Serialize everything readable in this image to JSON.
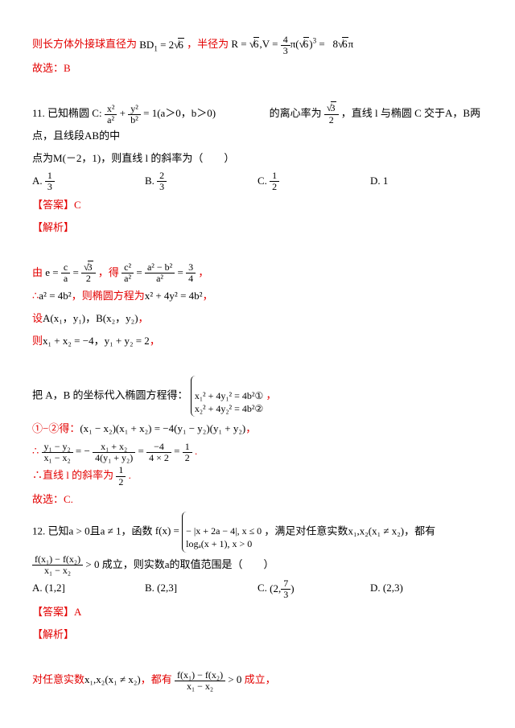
{
  "line1a": "则长方体外接球直径为",
  "line1b": "BD₁ = 2",
  "line1b_sqrt": "6",
  "line1c": "，半径为",
  "line1d_pre": "R = ",
  "line1d_sqrt": "6",
  "line1d_mid": ",V = ",
  "line1d_frac_num": "4",
  "line1d_frac_den": "3",
  "line1d_post": "π(",
  "line1d_sqrt2": "6",
  "line1d_end": ")³ =",
  "line1e": "8",
  "line1e_sqrt": "6",
  "line1e_end": "π",
  "line2": "故选：B",
  "q11a": "11. 已知椭圆 C: ",
  "q11_f1_num": "x²",
  "q11_f1_den": "a²",
  "q11_plus": " + ",
  "q11_f2_num": "y²",
  "q11_f2_den": "b²",
  "q11_eq": " = 1(a＞0，b＞0)",
  "q11b": "的离心率为",
  "q11_ecc_num_sqrt": "3",
  "q11_ecc_den": "2",
  "q11c": "，直线 l 与椭圆 C 交于",
  "q11d": "A，B",
  "q11e": "两点，且线段",
  "q11f": "AB",
  "q11g": "的中",
  "q11h": "点为",
  "q11i": "M(－2，1)",
  "q11j": "，则直线 l 的斜率为（　　）",
  "cA_num": "1",
  "cA_den": "3",
  "cB_num": "2",
  "cB_den": "3",
  "cC_num": "1",
  "cC_den": "2",
  "cD": "1",
  "ans_c": "【答案】C",
  "jiexi": "【解析】",
  "you": "由",
  "e_eq1": "e = ",
  "e_f1_num": "c",
  "e_f1_den": "a",
  "e_eq2": " = ",
  "e_f2_num_sqrt": "3",
  "e_f2_den": "2",
  "de": "，得",
  "e_f3_num": "c²",
  "e_f3_den": "a²",
  "e_eq3": " = ",
  "e_f4_num": "a² − b²",
  "e_f4_den": "a²",
  "e_eq4": " = ",
  "e_f5_num": "3",
  "e_f5_den": "4",
  "comma": "，",
  "so": "∴",
  "a4b": "a² = 4b²",
  "ze": "，则椭圆方程为",
  "ellipse2": "x² + 4y² = 4b²",
  "she": "设",
  "AB": "A(x₁，y₁)，B(x₂，y₂)",
  "ze2": "则",
  "sum": "x₁ + x₂ = −4，y₁ + y₂ = 2",
  "sub_in": "把 A，B 的坐标代入椭圆方程得：",
  "sys1": "x₁² + 4y₁² = 4b²①",
  "sys2": "x₂² + 4y₂² = 4b²②",
  "minus": "①−②得：",
  "diff": "(x₁ − x₂)(x₁ + x₂) = −4(y₁ − y₂)(y₁ + y₂)",
  "slope_lhs_num": "y₁ − y₂",
  "slope_lhs_den": "x₁ − x₂",
  "slope_eq": " = − ",
  "slope_m_num": "x₁ + x₂",
  "slope_m_den": "4(y₁ + y₂)",
  "slope_eq2": " = ",
  "slope_r_num": "−4",
  "slope_r_den": "4 × 2",
  "slope_eq3": " = ",
  "slope_end_num": "1",
  "slope_end_den": "2",
  "so_slope": "∴直线 l 的斜率为",
  "slope_val_num": "1",
  "slope_val_den": "2",
  "so_c": "故选：C.",
  "q12a": "12. 已知",
  "q12b": "a > 0",
  "q12c": "且",
  "q12d": "a ≠ 1",
  "q12e": "，函数",
  "q12f": "f(x) = ",
  "q12f_1": "− |x + 2a − 4|, x ≤ 0",
  "q12f_2": "logₐ(x + 1), x > 0",
  "q12g": "，满足对任意实数",
  "q12h": "x₁,x₂(x₁ ≠ x₂)",
  "q12i": "，都有",
  "q12frac_num": "f(x₁) − f(x₂)",
  "q12frac_den": "x₁ − x₂",
  "q12gt": " > 0",
  "q12k": "成立，则实数",
  "q12l": "a",
  "q12m": "的取值范围是（　　）",
  "c2A": "(1,2]",
  "c2B": "(2,3]",
  "c2C_pre": "(2,",
  "c2C_num": "7",
  "c2C_den": "3",
  "c2C_post": ")",
  "c2D": "(2,3)",
  "ans_a": "【答案】A",
  "final_a": "对任意实数",
  "final_b": "x₁,x₂(x₁ ≠ x₂)",
  "final_c": "，都有",
  "final_frac_num": "f(x₁) − f(x₂)",
  "final_frac_den": "x₁ − x₂",
  "final_gt": " > 0",
  "final_d": "成立，"
}
